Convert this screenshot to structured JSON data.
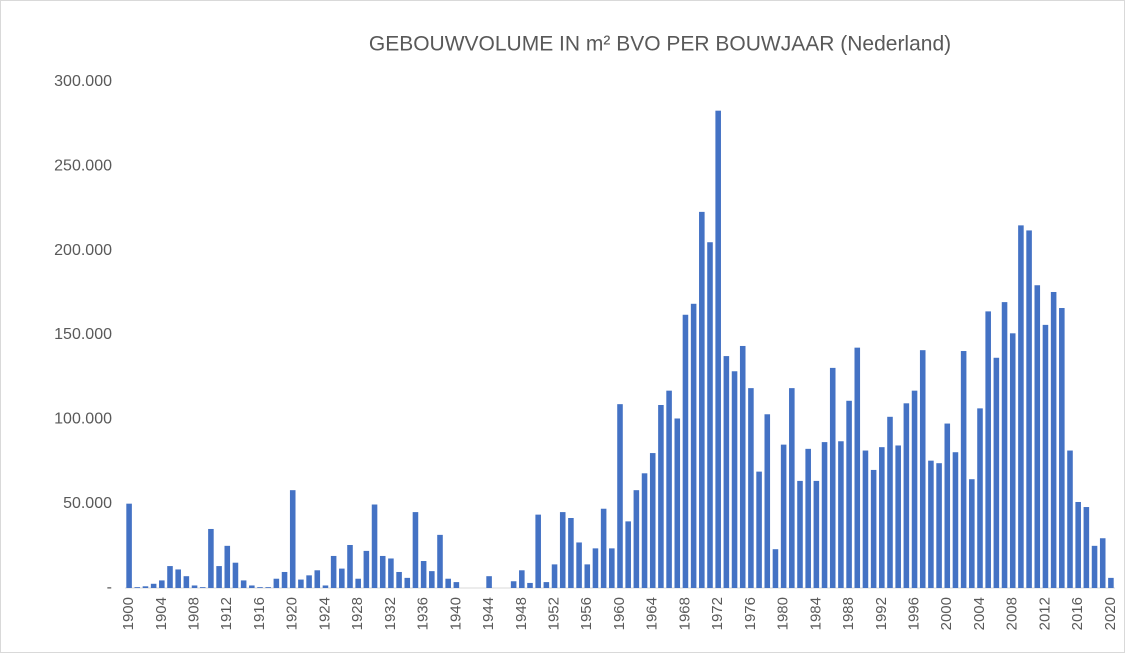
{
  "chart_data": {
    "type": "bar",
    "title": "GEBOUWVOLUME IN m² BVO PER BOUWJAAR (Nederland)",
    "categories": [
      "1900",
      null,
      null,
      null,
      "1904",
      null,
      null,
      null,
      "1908",
      null,
      null,
      null,
      "1912",
      null,
      null,
      null,
      "1916",
      null,
      null,
      null,
      "1920",
      null,
      null,
      null,
      "1924",
      null,
      null,
      null,
      "1928",
      null,
      null,
      null,
      "1932",
      null,
      null,
      null,
      "1936",
      null,
      null,
      null,
      "1940",
      null,
      null,
      null,
      "1944",
      null,
      null,
      null,
      "1948",
      null,
      null,
      null,
      "1952",
      null,
      null,
      null,
      "1956",
      null,
      null,
      null,
      "1960",
      null,
      null,
      null,
      "1964",
      null,
      null,
      null,
      "1968",
      null,
      null,
      null,
      "1972",
      null,
      null,
      null,
      "1976",
      null,
      null,
      null,
      "1980",
      null,
      null,
      null,
      "1984",
      null,
      null,
      null,
      "1988",
      null,
      null,
      null,
      "1992",
      null,
      null,
      null,
      "1996",
      null,
      null,
      null,
      "2000",
      null,
      null,
      null,
      "2004",
      null,
      null,
      null,
      "2008",
      null,
      null,
      null,
      "2012",
      null,
      null,
      null,
      "2016",
      null,
      null,
      null,
      "2020"
    ],
    "values": [
      50000,
      500,
      1000,
      2500,
      4500,
      13000,
      11000,
      7000,
      1500,
      500,
      35000,
      13000,
      25000,
      15000,
      4500,
      1500,
      500,
      500,
      5500,
      9500,
      58000,
      5000,
      7500,
      10500,
      1500,
      19000,
      11500,
      25500,
      5500,
      22000,
      49500,
      19000,
      17500,
      9500,
      6000,
      45000,
      16000,
      10000,
      31500,
      5500,
      3500,
      0,
      0,
      0,
      7000,
      0,
      0,
      4000,
      10500,
      3000,
      43500,
      3500,
      14000,
      45000,
      41500,
      27000,
      14000,
      23500,
      47000,
      23500,
      109000,
      39500,
      58000,
      68000,
      80000,
      108500,
      117000,
      100500,
      162000,
      168500,
      223000,
      205000,
      283000,
      137500,
      128500,
      143500,
      118500,
      69000,
      103000,
      23000,
      85000,
      118500,
      63500,
      82500,
      63500,
      86500,
      130500,
      87000,
      111000,
      142500,
      81500,
      70000,
      83500,
      101500,
      84500,
      109500,
      117000,
      141000,
      75500,
      74000,
      97500,
      80500,
      140500,
      64500,
      106500,
      164000,
      136500,
      169500,
      151000,
      215000,
      212000,
      179500,
      156000,
      175500,
      166000,
      81500,
      51000,
      48000,
      25000,
      29500,
      6000
    ],
    "color": "#4472c4",
    "ylim": [
      0,
      300000
    ],
    "yticks": [
      {
        "value": 0,
        "label": "-"
      },
      {
        "value": 50000,
        "label": "50.000"
      },
      {
        "value": 100000,
        "label": "100.000"
      },
      {
        "value": 150000,
        "label": "150.000"
      },
      {
        "value": 200000,
        "label": "200.000"
      },
      {
        "value": 250000,
        "label": "250.000"
      },
      {
        "value": 300000,
        "label": "300.000"
      }
    ],
    "grid": false
  }
}
